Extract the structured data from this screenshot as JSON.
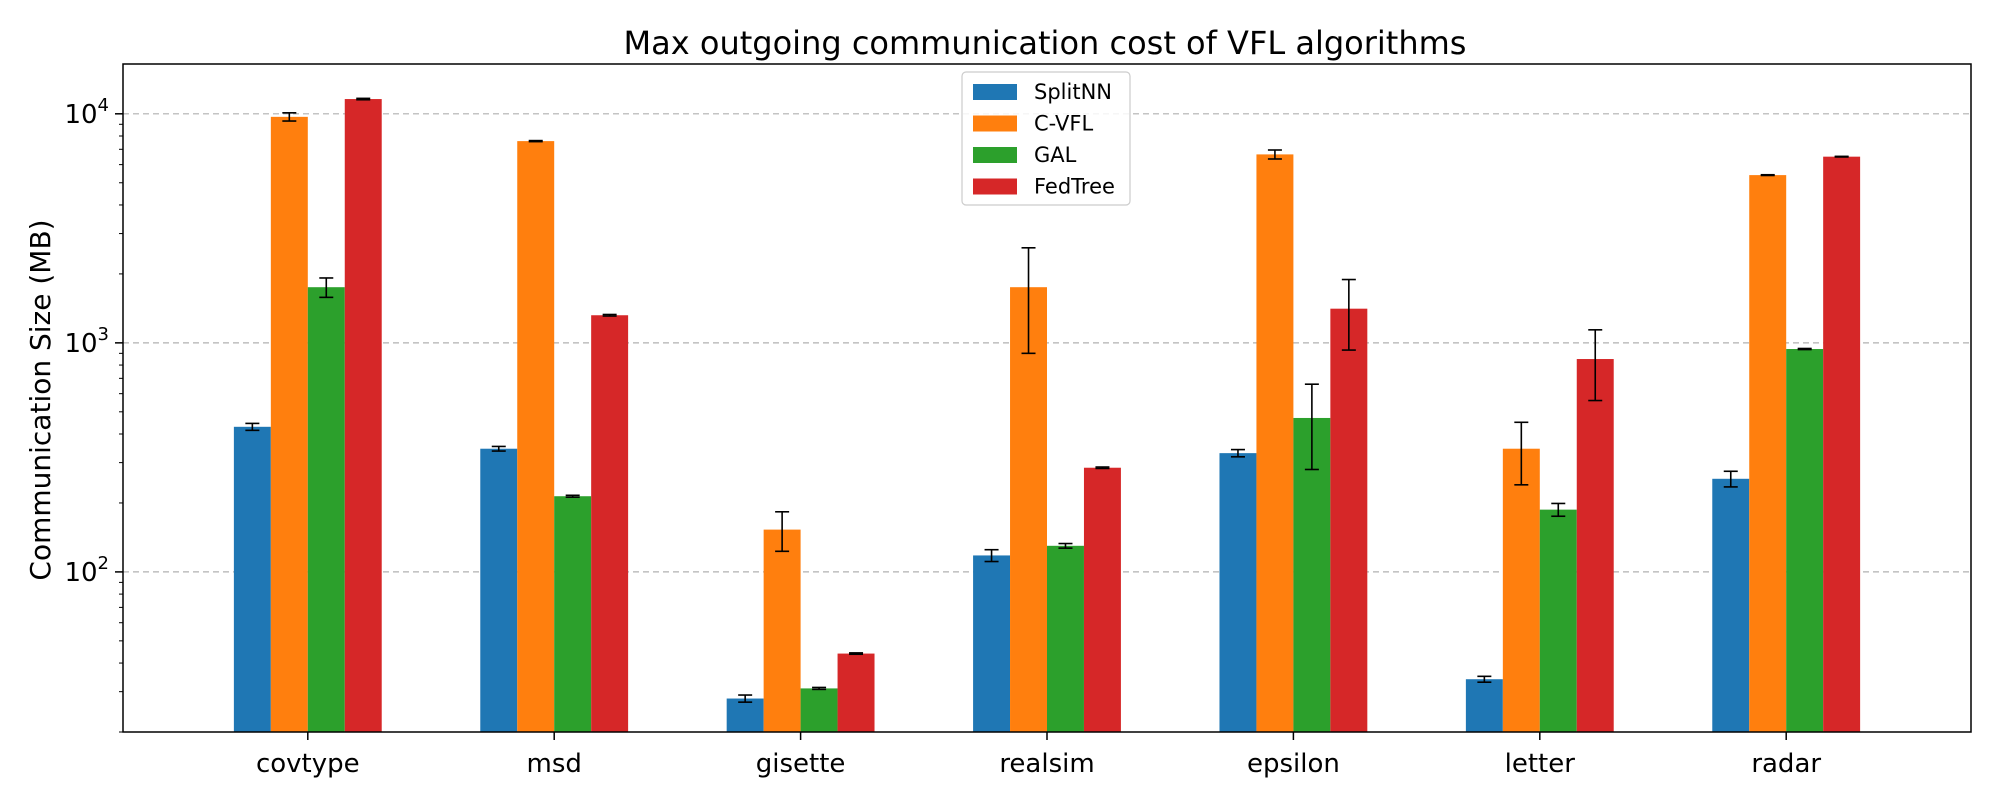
{
  "chart_data": {
    "type": "bar",
    "title": "Max outgoing communication cost of VFL algorithms",
    "xlabel": "",
    "ylabel": "Communication Size (MB)",
    "yscale": "log",
    "ylim": [
      20,
      16500
    ],
    "yticks": [
      {
        "value": 100,
        "base": "10",
        "exp": "2"
      },
      {
        "value": 1000,
        "base": "10",
        "exp": "3"
      },
      {
        "value": 10000,
        "base": "10",
        "exp": "4"
      }
    ],
    "grid": "y-dashed",
    "legend_position": "top-center",
    "categories": [
      "covtype",
      "msd",
      "gisette",
      "realsim",
      "epsilon",
      "letter",
      "radar"
    ],
    "series": [
      {
        "name": "SplitNN",
        "color": "#1f77b4",
        "values": [
          430,
          345,
          28,
          118,
          330,
          34,
          255
        ],
        "errors": [
          15,
          8,
          1,
          7,
          12,
          1,
          20
        ]
      },
      {
        "name": "C-VFL",
        "color": "#ff7f0e",
        "values": [
          9700,
          7600,
          153,
          1750,
          6650,
          345,
          5400
        ],
        "errors": [
          400,
          40,
          30,
          850,
          300,
          105,
          20
        ]
      },
      {
        "name": "GAL",
        "color": "#2ca02c",
        "values": [
          1750,
          214,
          31,
          130,
          470,
          187,
          940
        ],
        "errors": [
          170,
          2,
          0.3,
          3,
          190,
          12,
          5
        ]
      },
      {
        "name": "FedTree",
        "color": "#d62728",
        "values": [
          11600,
          1320,
          44,
          285,
          1410,
          850,
          6500
        ],
        "errors": [
          80,
          10,
          0.3,
          2,
          480,
          290,
          20
        ]
      }
    ]
  }
}
